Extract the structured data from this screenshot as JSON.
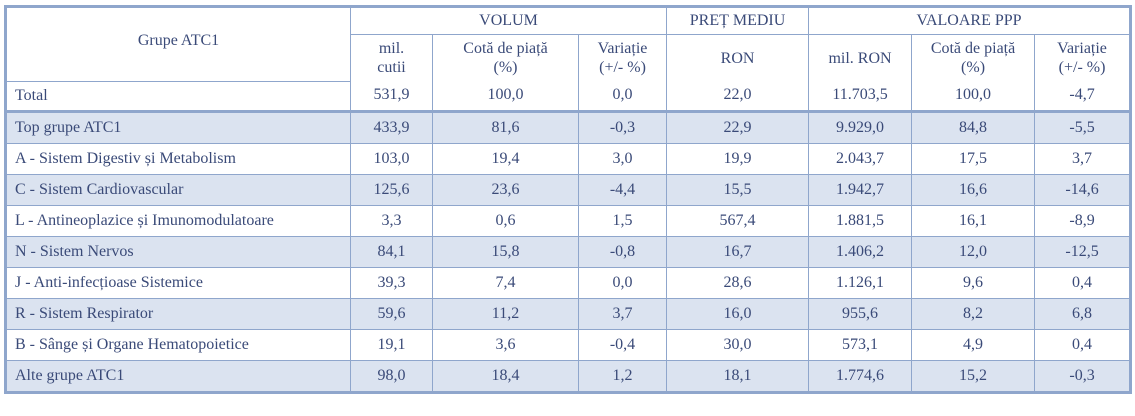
{
  "headers": {
    "group_col": "Grupe ATC1",
    "volum": "VOLUM",
    "pret": "PREȚ MEDIU",
    "valoare": "VALOARE PPP",
    "sub": {
      "mil_cutii_1": "mil.",
      "mil_cutii_2": "cutii",
      "cota_1": "Cotă de piață",
      "cota_2": "(%)",
      "var_1": "Variație",
      "var_2": "(+/- %)",
      "ron": "RON",
      "mil_ron": "mil. RON",
      "cota_v_1": "Cotă de piață",
      "cota_v_2": "(%)",
      "var_v_1": "Variație",
      "var_v_2": "(+/- %)"
    }
  },
  "total": [
    "Total",
    "531,9",
    "100,0",
    "0,0",
    "22,0",
    "11.703,5",
    "100,0",
    "-4,7"
  ],
  "rows": [
    [
      "Top grupe ATC1",
      "433,9",
      "81,6",
      "-0,3",
      "22,9",
      "9.929,0",
      "84,8",
      "-5,5"
    ],
    [
      "A - Sistem Digestiv și Metabolism",
      "103,0",
      "19,4",
      "3,0",
      "19,9",
      "2.043,7",
      "17,5",
      "3,7"
    ],
    [
      "C - Sistem Cardiovascular",
      "125,6",
      "23,6",
      "-4,4",
      "15,5",
      "1.942,7",
      "16,6",
      "-14,6"
    ],
    [
      "L - Antineoplazice și Imunomodulatoare",
      "3,3",
      "0,6",
      "1,5",
      "567,4",
      "1.881,5",
      "16,1",
      "-8,9"
    ],
    [
      "N - Sistem Nervos",
      "84,1",
      "15,8",
      "-0,8",
      "16,7",
      "1.406,2",
      "12,0",
      "-12,5"
    ],
    [
      "J - Anti-infecțioase Sistemice",
      "39,3",
      "7,4",
      "0,0",
      "28,6",
      "1.126,1",
      "9,6",
      "0,4"
    ],
    [
      "R - Sistem Respirator",
      "59,6",
      "11,2",
      "3,7",
      "16,0",
      "955,6",
      "8,2",
      "6,8"
    ],
    [
      "B - Sânge și Organe Hematopoietice",
      "19,1",
      "3,6",
      "-0,4",
      "30,0",
      "573,1",
      "4,9",
      "0,4"
    ],
    [
      "Alte grupe ATC1",
      "98,0",
      "18,4",
      "1,2",
      "18,1",
      "1.774,6",
      "15,2",
      "-0,3"
    ]
  ],
  "colors": {
    "border": "#8fa6cc",
    "shade": "#dbe3f0",
    "text": "#3a4a78"
  }
}
